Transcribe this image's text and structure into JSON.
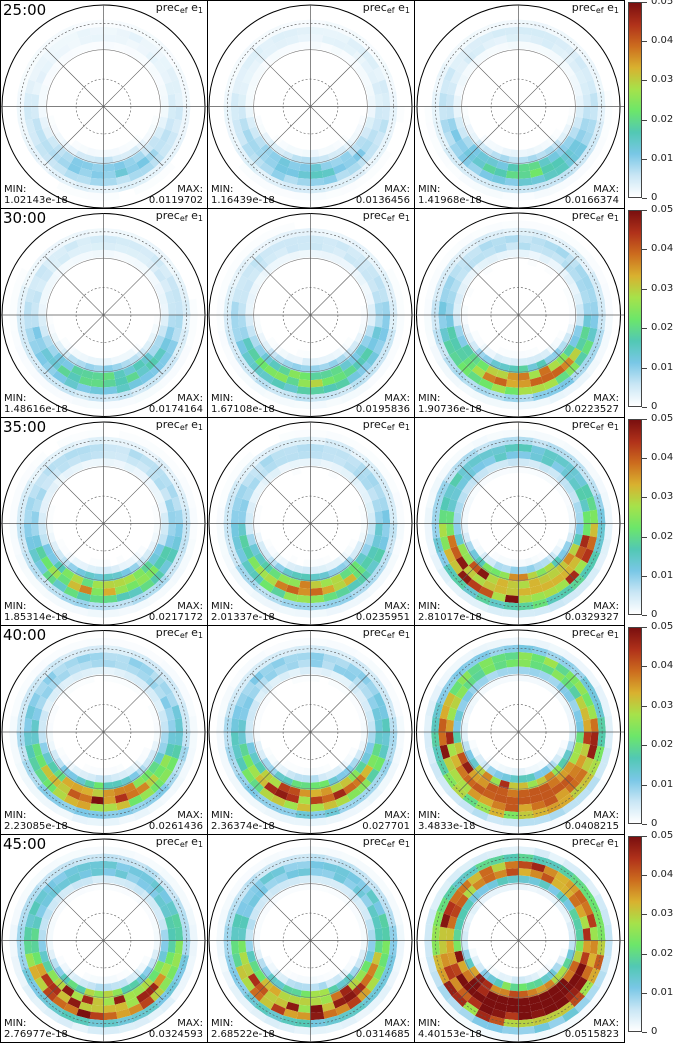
{
  "chart_data": {
    "type": "heatmap",
    "projection": "polar",
    "variable": {
      "base": "prec",
      "sub1": "ef",
      "mid": "e",
      "sub2": "1"
    },
    "colorbar": {
      "ticks": [
        "0",
        "0.01",
        "0.02",
        "0.03",
        "0.04",
        "0.05"
      ],
      "range": [
        0,
        0.05
      ],
      "colors": [
        "#ffffff",
        "#c9e6f5",
        "#79c7e6",
        "#52c8b4",
        "#6ce66a",
        "#a6e24a",
        "#d9b12f",
        "#cc6c1e",
        "#b0311a",
        "#7a0f0f"
      ]
    },
    "min_label": "MIN:",
    "max_label": "MAX:",
    "rows": [
      {
        "time": "25:00",
        "panels": [
          {
            "min": "1.02143e-18",
            "max": "0.0119702"
          },
          {
            "min": "1.16439e-18",
            "max": "0.0136456"
          },
          {
            "min": "1.41968e-18",
            "max": "0.0166374"
          }
        ]
      },
      {
        "time": "30:00",
        "panels": [
          {
            "min": "1.48616e-18",
            "max": "0.0174164"
          },
          {
            "min": "1.67108e-18",
            "max": "0.0195836"
          },
          {
            "min": "1.90736e-18",
            "max": "0.0223527"
          }
        ]
      },
      {
        "time": "35:00",
        "panels": [
          {
            "min": "1.85314e-18",
            "max": "0.0217172"
          },
          {
            "min": "2.01337e-18",
            "max": "0.0235951"
          },
          {
            "min": "2.81017e-18",
            "max": "0.0329327"
          }
        ]
      },
      {
        "time": "40:00",
        "panels": [
          {
            "min": "2.23085e-18",
            "max": "0.0261436"
          },
          {
            "min": "2.36374e-18",
            "max": "0.027701"
          },
          {
            "min": "3.4833e-18",
            "max": "0.0408215"
          }
        ]
      },
      {
        "time": "45:00",
        "panels": [
          {
            "min": "2.76977e-18",
            "max": "0.0324593"
          },
          {
            "min": "2.68522e-18",
            "max": "0.0314685"
          },
          {
            "min": "4.40153e-18",
            "max": "0.0515823"
          }
        ]
      }
    ]
  }
}
